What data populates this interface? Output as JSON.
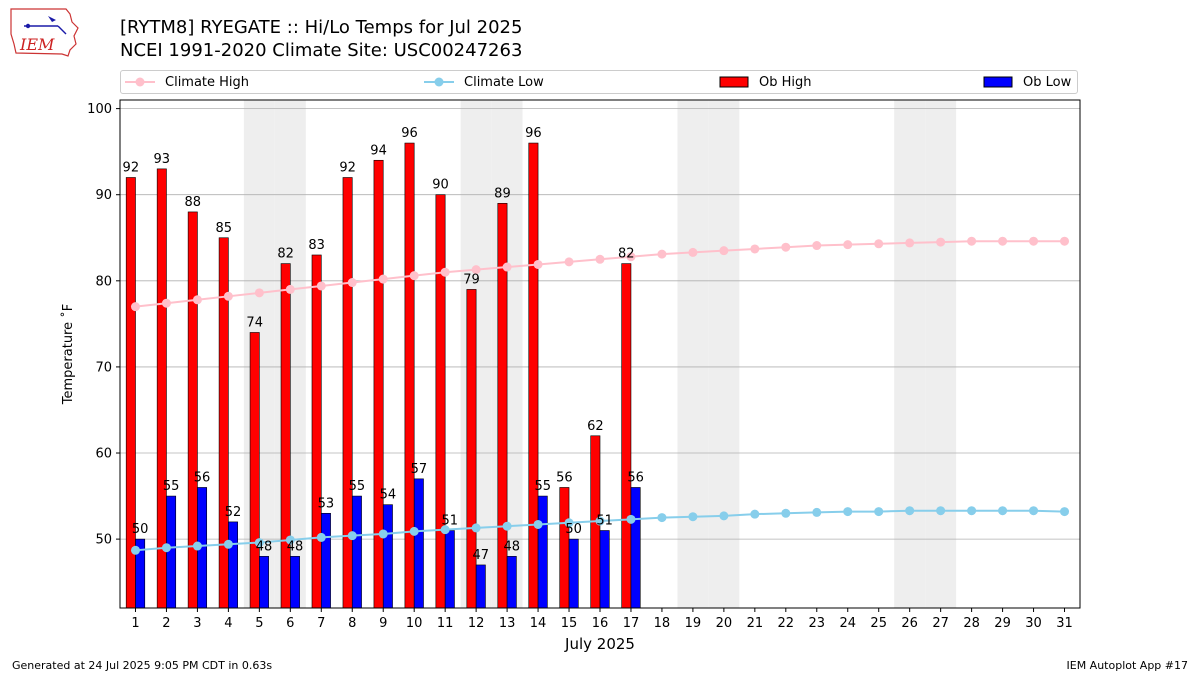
{
  "header": {
    "title_line1": "[RYTM8] RYEGATE :: Hi/Lo Temps for Jul 2025",
    "title_line2": "NCEI 1991-2020 Climate Site: USC00247263",
    "logo_text": "IEM"
  },
  "legend": {
    "climate_high": "Climate High",
    "climate_low": "Climate Low",
    "ob_high": "Ob High",
    "ob_low": "Ob Low"
  },
  "colors": {
    "climate_high": "#ffc0cb",
    "climate_low": "#87ceeb",
    "ob_high": "#ff0000",
    "ob_low": "#0000ff",
    "weekend_band": "#eeeeee",
    "grid": "#b0b0b0"
  },
  "chart_data": {
    "type": "bar",
    "title": "[RYTM8] RYEGATE :: Hi/Lo Temps for Jul 2025",
    "subtitle": "NCEI 1991-2020 Climate Site: USC00247263",
    "xlabel": "July 2025",
    "ylabel": "Temperature $^\\circ$F",
    "ylabel_display": "Temperature ˚F",
    "categories": [
      "1",
      "2",
      "3",
      "4",
      "5",
      "6",
      "7",
      "8",
      "9",
      "10",
      "11",
      "12",
      "13",
      "14",
      "15",
      "16",
      "17",
      "18",
      "19",
      "20",
      "21",
      "22",
      "23",
      "24",
      "25",
      "26",
      "27",
      "28",
      "29",
      "30",
      "31"
    ],
    "ylim": [
      42,
      101
    ],
    "yticks": [
      50,
      60,
      70,
      80,
      90,
      100
    ],
    "grid": "horizontal",
    "legend_position": "top",
    "weekend_days": [
      5,
      6,
      12,
      13,
      19,
      20,
      26,
      27
    ],
    "series": [
      {
        "name": "Ob High",
        "kind": "bar",
        "values": [
          92,
          93,
          88,
          85,
          74,
          82,
          83,
          92,
          94,
          96,
          90,
          79,
          89,
          96,
          56,
          62,
          82,
          null,
          null,
          null,
          null,
          null,
          null,
          null,
          null,
          null,
          null,
          null,
          null,
          null,
          null
        ]
      },
      {
        "name": "Ob Low",
        "kind": "bar",
        "values": [
          50,
          55,
          56,
          52,
          48,
          48,
          53,
          55,
          54,
          57,
          51,
          47,
          48,
          55,
          50,
          51,
          56,
          null,
          null,
          null,
          null,
          null,
          null,
          null,
          null,
          null,
          null,
          null,
          null,
          null,
          null
        ]
      },
      {
        "name": "Climate High",
        "kind": "line",
        "values": [
          77.0,
          77.4,
          77.8,
          78.2,
          78.6,
          79.0,
          79.4,
          79.8,
          80.2,
          80.6,
          81.0,
          81.3,
          81.6,
          81.9,
          82.2,
          82.5,
          82.8,
          83.1,
          83.3,
          83.5,
          83.7,
          83.9,
          84.1,
          84.2,
          84.3,
          84.4,
          84.5,
          84.6,
          84.6,
          84.6,
          84.6
        ]
      },
      {
        "name": "Climate Low",
        "kind": "line",
        "values": [
          48.7,
          49.0,
          49.2,
          49.4,
          49.6,
          49.9,
          50.2,
          50.4,
          50.6,
          50.9,
          51.1,
          51.3,
          51.5,
          51.7,
          51.9,
          52.1,
          52.3,
          52.5,
          52.6,
          52.7,
          52.9,
          53.0,
          53.1,
          53.2,
          53.2,
          53.3,
          53.3,
          53.3,
          53.3,
          53.3,
          53.2
        ]
      }
    ]
  },
  "footer": {
    "generated": "Generated at 24 Jul 2025 9:05 PM CDT in 0.63s",
    "app": "IEM Autoplot App #17"
  }
}
